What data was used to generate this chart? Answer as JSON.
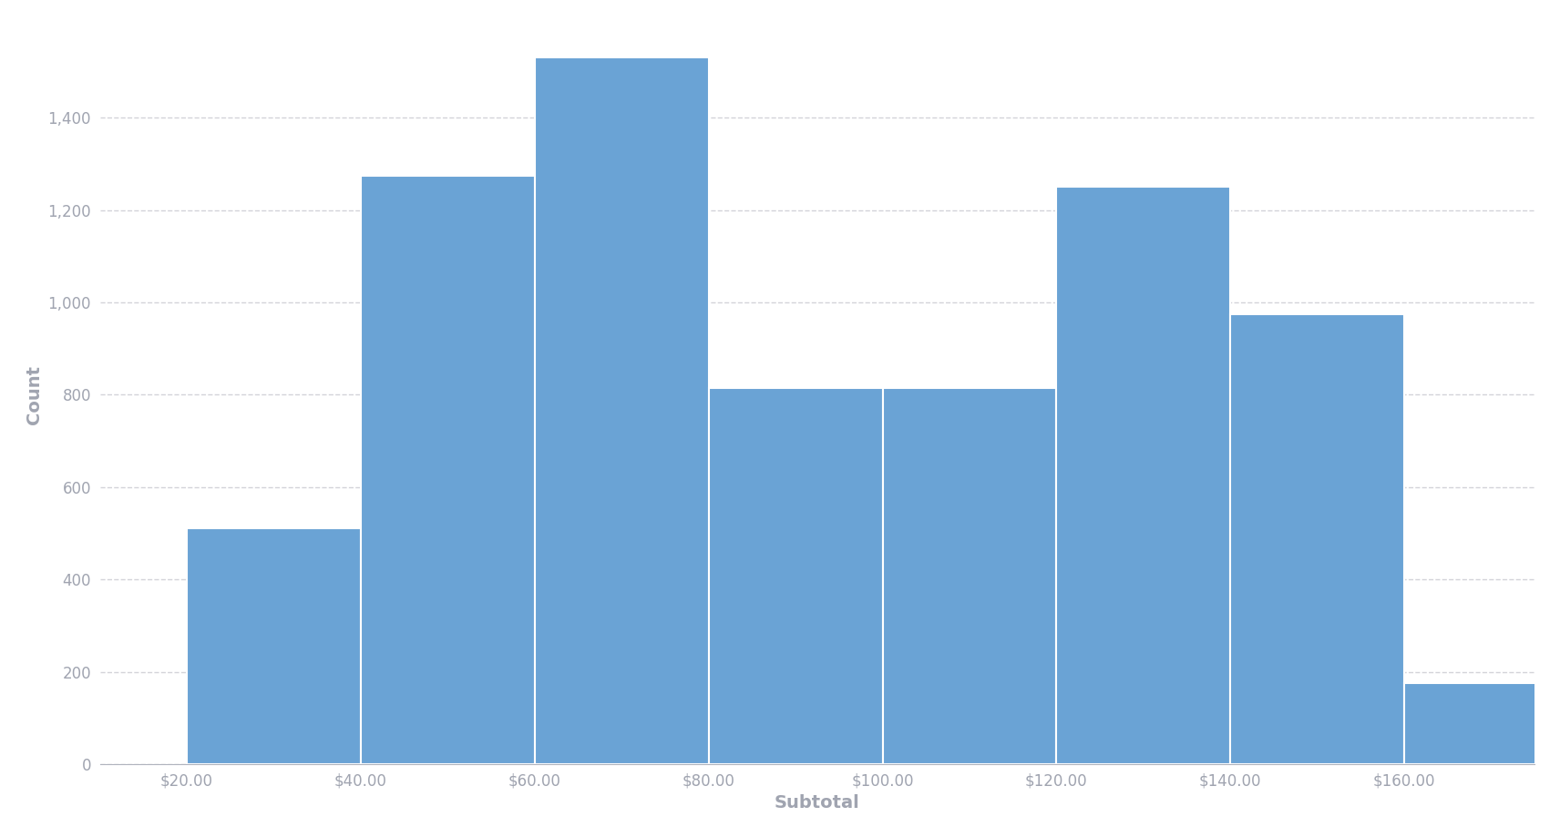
{
  "bin_edges": [
    20,
    40,
    60,
    80,
    100,
    120,
    140,
    160
  ],
  "counts": [
    510,
    1275,
    1530,
    815,
    815,
    1250,
    975,
    175
  ],
  "bar_color": "#6aa3d5",
  "bar_edgecolor": "#ffffff",
  "bar_linewidth": 1.5,
  "xlabel": "Subtotal",
  "ylabel": "Count",
  "xlabel_fontsize": 14,
  "ylabel_fontsize": 14,
  "tick_label_fontsize": 12,
  "xlabel_fontweight": "bold",
  "ylabel_fontweight": "bold",
  "xtick_labels": [
    "$20.00",
    "$40.00",
    "$60.00",
    "$80.00",
    "$100.00",
    "$120.00",
    "$140.00",
    "$160.00"
  ],
  "xtick_positions": [
    20,
    40,
    60,
    80,
    100,
    120,
    140,
    160
  ],
  "ylim": [
    0,
    1600
  ],
  "yticks": [
    0,
    200,
    400,
    600,
    800,
    1000,
    1200,
    1400
  ],
  "grid_color": "#c8c8d0",
  "grid_linestyle": "--",
  "grid_alpha": 0.8,
  "background_color": "#ffffff",
  "tick_color": "#a0a4b0",
  "spine_color": "#b0b4be",
  "figure_facecolor": "#ffffff"
}
